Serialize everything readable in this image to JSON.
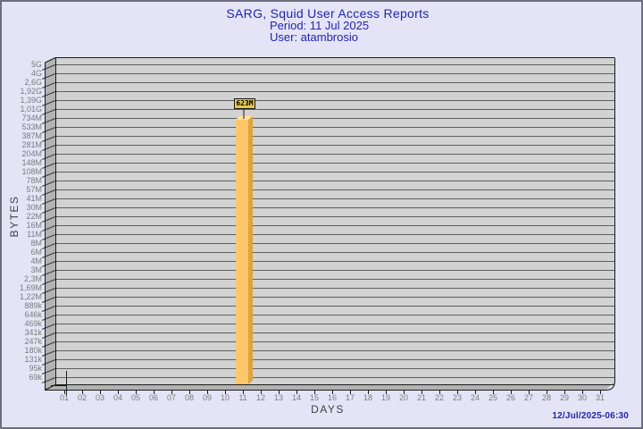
{
  "header": {
    "title": "SARG, Squid User Access Reports",
    "period": "Period: 11 Jul 2025",
    "user": "User: atambrosio"
  },
  "footer": {
    "timestamp": "12/Jul/2025-06:30"
  },
  "colors": {
    "background": "#E4E4F6",
    "border": "#6E6E7C",
    "title_text": "#2323AB",
    "plot_face": "#D2D2D2",
    "plot_wall": "#B3B3B3",
    "gridline": "#5E5E5E",
    "wall_tick": "#3A3A3A",
    "outline": "#1A1A1A",
    "tick_text": "#7B7B7B",
    "axis_label_text": "#3F3F3F",
    "bar_front": "#FCC76A",
    "bar_side": "#DDA33F",
    "bar_top": "#FFE3A1",
    "value_label_bg": "#E4C84E"
  },
  "chart_data": {
    "type": "bar",
    "title": "SARG, Squid User Access Reports",
    "subtitle_period": "Period: 11 Jul 2025",
    "subtitle_user": "User: atambrosio",
    "xlabel": "DAYS",
    "ylabel": "BYTES",
    "legend": "none",
    "grid": "horizontal",
    "x_categories": [
      "01",
      "02",
      "03",
      "04",
      "05",
      "06",
      "07",
      "08",
      "09",
      "10",
      "11",
      "12",
      "13",
      "14",
      "15",
      "16",
      "17",
      "18",
      "19",
      "20",
      "21",
      "22",
      "23",
      "24",
      "25",
      "26",
      "27",
      "28",
      "29",
      "30",
      "31"
    ],
    "y_ticks": [
      "5G",
      "4G",
      "2,6G",
      "1,92G",
      "1,39G",
      "1,01G",
      "734M",
      "533M",
      "387M",
      "281M",
      "204M",
      "148M",
      "108M",
      "78M",
      "57M",
      "41M",
      "30M",
      "22M",
      "16M",
      "11M",
      "8M",
      "6M",
      "4M",
      "3M",
      "2,3M",
      "1,69M",
      "1,22M",
      "889k",
      "646k",
      "469k",
      "341k",
      "247k",
      "180k",
      "131k",
      "95k",
      "69k"
    ],
    "series": [
      {
        "name": "bytes",
        "values": [
          0,
          0,
          0,
          0,
          0,
          0,
          0,
          0,
          0,
          0,
          623000000,
          0,
          0,
          0,
          0,
          0,
          0,
          0,
          0,
          0,
          0,
          0,
          0,
          0,
          0,
          0,
          0,
          0,
          0,
          0,
          0
        ]
      }
    ],
    "bar_day": "11",
    "bar_label": "623M"
  }
}
